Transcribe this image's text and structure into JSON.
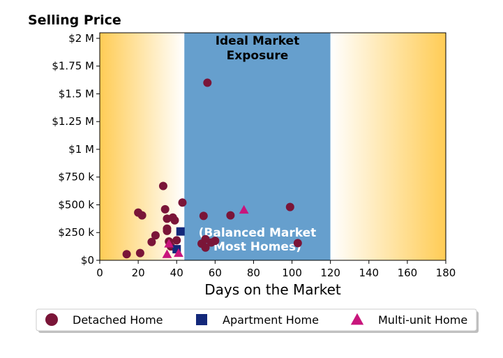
{
  "chart_data": {
    "type": "scatter",
    "ylabel": "Selling Price",
    "xlabel": "Days on the Market",
    "xlim": [
      0,
      180
    ],
    "ylim": [
      0,
      2050000
    ],
    "x_ticks": [
      0,
      20,
      40,
      60,
      80,
      100,
      120,
      140,
      160,
      180
    ],
    "y_ticks": [
      {
        "value": 0,
        "label": "$0"
      },
      {
        "value": 250000,
        "label": "$250 k"
      },
      {
        "value": 500000,
        "label": "$500 k"
      },
      {
        "value": 750000,
        "label": "$750 k"
      },
      {
        "value": 1000000,
        "label": "$1 M"
      },
      {
        "value": 1250000,
        "label": "$1.25 M"
      },
      {
        "value": 1500000,
        "label": "$1.5 M"
      },
      {
        "value": 1750000,
        "label": "$1.75 M"
      },
      {
        "value": 2000000,
        "label": "$2 M"
      }
    ],
    "band": {
      "x_start": 44,
      "x_end": 120,
      "top_label_line1": "Ideal Market",
      "top_label_line2": "Exposure",
      "bottom_label_line1": "(Balanced Market",
      "bottom_label_line2": "Most Homes)"
    },
    "grid": false,
    "legend_position": "bottom",
    "series": [
      {
        "name": "Detached Home",
        "marker": "circle",
        "color": "#7a1538",
        "points": [
          [
            14,
            55000
          ],
          [
            21,
            65000
          ],
          [
            20,
            430000
          ],
          [
            22,
            405000
          ],
          [
            27,
            165000
          ],
          [
            29,
            225000
          ],
          [
            33,
            670000
          ],
          [
            34,
            460000
          ],
          [
            35,
            375000
          ],
          [
            35,
            285000
          ],
          [
            35,
            265000
          ],
          [
            36,
            170000
          ],
          [
            37,
            125000
          ],
          [
            38,
            385000
          ],
          [
            39,
            360000
          ],
          [
            40,
            180000
          ],
          [
            43,
            520000
          ],
          [
            53,
            150000
          ],
          [
            54,
            400000
          ],
          [
            55,
            115000
          ],
          [
            55,
            190000
          ],
          [
            56,
            1600000
          ],
          [
            58,
            160000
          ],
          [
            60,
            175000
          ],
          [
            68,
            405000
          ],
          [
            99,
            480000
          ],
          [
            103,
            155000
          ]
        ]
      },
      {
        "name": "Apartment Home",
        "marker": "square",
        "color": "#13287a",
        "points": [
          [
            42,
            260000
          ],
          [
            40,
            100000
          ]
        ]
      },
      {
        "name": "Multi-unit Home",
        "marker": "triangle",
        "color": "#c8157c",
        "points": [
          [
            75,
            455000
          ],
          [
            36,
            150000
          ],
          [
            35,
            55000
          ],
          [
            41,
            65000
          ]
        ]
      }
    ]
  }
}
